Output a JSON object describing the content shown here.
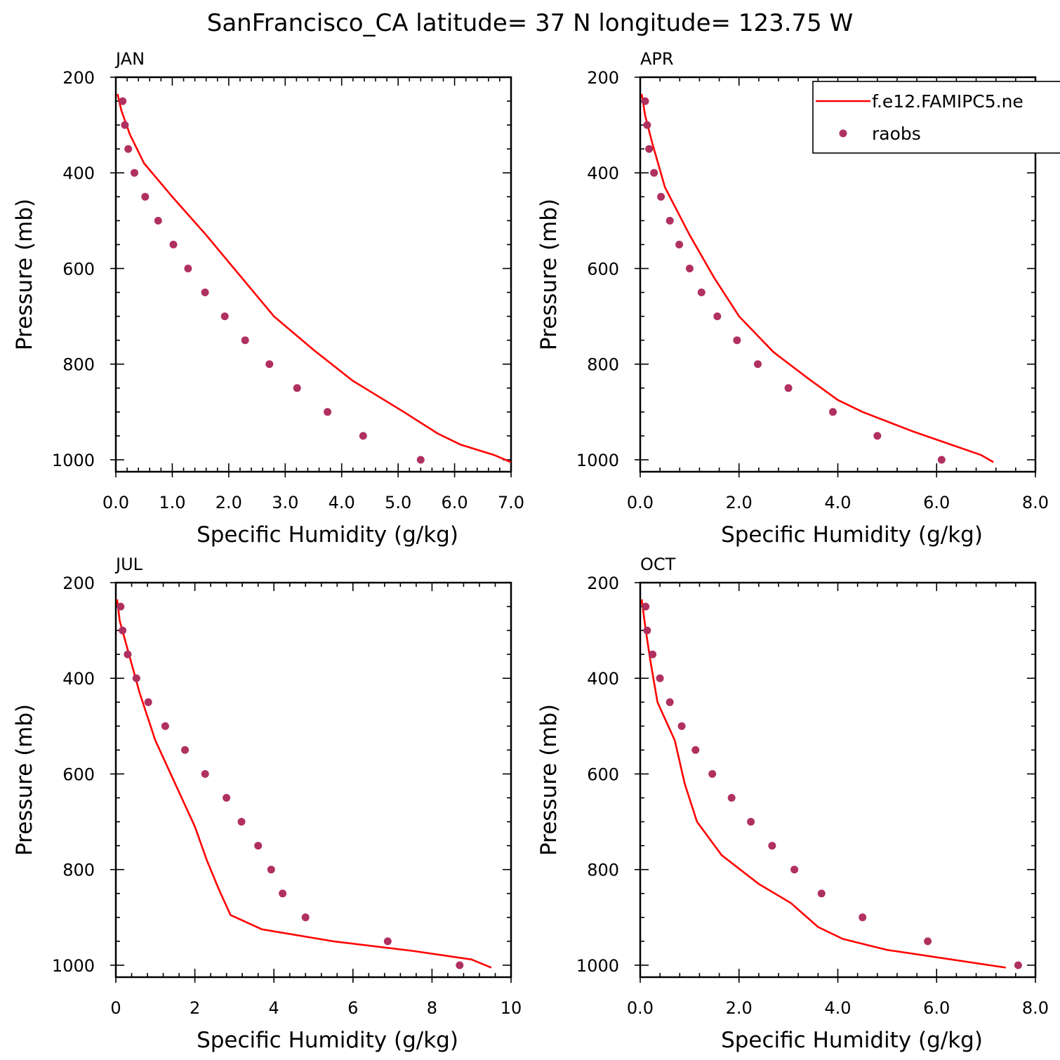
{
  "title": "SanFrancisco_CA  latitude= 37 N longitude= 123.75 W",
  "colors": {
    "model": "#ff0000",
    "obs": "#b03060",
    "axis": "#000000"
  },
  "legend": {
    "model_label": "f.e12.FAMIPC5.ne",
    "obs_label": "raobs"
  },
  "chart_data": [
    {
      "type": "line",
      "panel": "JAN",
      "xlabel": "Specific Humidity (g/kg)",
      "ylabel": "Pressure (mb)",
      "xlim": [
        0,
        7
      ],
      "ylim": [
        1025,
        200
      ],
      "xticks": [
        "0.0",
        "1.0",
        "2.0",
        "3.0",
        "4.0",
        "5.0",
        "6.0",
        "7.0"
      ],
      "yticks": [
        "200",
        "400",
        "600",
        "800",
        "1000"
      ],
      "series": [
        {
          "name": "f.e12.FAMIPC5.ne",
          "kind": "line",
          "x": [
            0.03,
            0.1,
            0.25,
            0.5,
            1.0,
            1.6,
            2.2,
            2.8,
            3.5,
            4.2,
            5.1,
            5.7,
            6.1,
            6.7,
            7.0
          ],
          "y": [
            235,
            270,
            320,
            380,
            450,
            530,
            615,
            700,
            770,
            835,
            900,
            945,
            968,
            990,
            1005
          ]
        },
        {
          "name": "raobs",
          "kind": "scatter",
          "x": [
            0.12,
            0.16,
            0.22,
            0.33,
            0.52,
            0.75,
            1.02,
            1.28,
            1.58,
            1.93,
            2.29,
            2.72,
            3.21,
            3.75,
            4.38,
            5.4
          ],
          "y": [
            250,
            300,
            350,
            400,
            450,
            500,
            550,
            600,
            650,
            700,
            750,
            800,
            850,
            900,
            950,
            1000
          ]
        }
      ]
    },
    {
      "type": "line",
      "panel": "APR",
      "xlabel": "Specific Humidity (g/kg)",
      "ylabel": "Pressure (mb)",
      "xlim": [
        0,
        8
      ],
      "ylim": [
        1025,
        200
      ],
      "xticks": [
        "0.0",
        "2.0",
        "4.0",
        "6.0",
        "8.0"
      ],
      "yticks": [
        "200",
        "400",
        "600",
        "800",
        "1000"
      ],
      "series": [
        {
          "name": "f.e12.FAMIPC5.ne",
          "kind": "line",
          "x": [
            0.03,
            0.1,
            0.25,
            0.5,
            1.0,
            1.5,
            2.0,
            2.7,
            3.4,
            4.0,
            4.5,
            5.5,
            6.9,
            7.15
          ],
          "y": [
            235,
            280,
            340,
            430,
            530,
            620,
            700,
            775,
            830,
            875,
            900,
            940,
            990,
            1005
          ]
        },
        {
          "name": "raobs",
          "kind": "scatter",
          "x": [
            0.1,
            0.14,
            0.18,
            0.28,
            0.42,
            0.6,
            0.79,
            1.0,
            1.24,
            1.56,
            1.96,
            2.38,
            3.0,
            3.9,
            4.8,
            6.1
          ],
          "y": [
            250,
            300,
            350,
            400,
            450,
            500,
            550,
            600,
            650,
            700,
            750,
            800,
            850,
            900,
            950,
            1000
          ]
        }
      ]
    },
    {
      "type": "line",
      "panel": "JUL",
      "xlabel": "Specific Humidity (g/kg)",
      "ylabel": "Pressure (mb)",
      "xlim": [
        0,
        10
      ],
      "ylim": [
        1025,
        200
      ],
      "xticks": [
        "0",
        "2",
        "4",
        "6",
        "8",
        "10"
      ],
      "yticks": [
        "200",
        "400",
        "600",
        "800",
        "1000"
      ],
      "series": [
        {
          "name": "f.e12.FAMIPC5.ne",
          "kind": "line",
          "x": [
            0.03,
            0.1,
            0.3,
            0.6,
            1.0,
            1.5,
            2.0,
            2.3,
            2.6,
            2.9,
            3.7,
            5.5,
            7.5,
            9.0,
            9.5
          ],
          "y": [
            235,
            280,
            340,
            430,
            530,
            620,
            710,
            780,
            840,
            895,
            925,
            950,
            970,
            988,
            1005
          ]
        },
        {
          "name": "raobs",
          "kind": "scatter",
          "x": [
            0.12,
            0.17,
            0.3,
            0.52,
            0.82,
            1.25,
            1.75,
            2.26,
            2.8,
            3.18,
            3.6,
            3.93,
            4.22,
            4.8,
            6.88,
            8.7
          ],
          "y": [
            250,
            300,
            350,
            400,
            450,
            500,
            550,
            600,
            650,
            700,
            750,
            800,
            850,
            900,
            950,
            1000
          ]
        }
      ]
    },
    {
      "type": "line",
      "panel": "OCT",
      "xlabel": "Specific Humidity (g/kg)",
      "ylabel": "Pressure (mb)",
      "xlim": [
        0,
        8
      ],
      "ylim": [
        1025,
        200
      ],
      "xticks": [
        "0.0",
        "2.0",
        "4.0",
        "6.0",
        "8.0"
      ],
      "yticks": [
        "200",
        "400",
        "600",
        "800",
        "1000"
      ],
      "series": [
        {
          "name": "f.e12.FAMIPC5.ne",
          "kind": "line",
          "x": [
            0.03,
            0.1,
            0.2,
            0.35,
            0.7,
            0.9,
            1.15,
            1.65,
            2.4,
            3.05,
            3.6,
            4.1,
            5.0,
            7.4
          ],
          "y": [
            235,
            290,
            360,
            450,
            530,
            620,
            700,
            770,
            830,
            870,
            920,
            945,
            968,
            1005
          ]
        },
        {
          "name": "raobs",
          "kind": "scatter",
          "x": [
            0.11,
            0.14,
            0.25,
            0.4,
            0.6,
            0.84,
            1.12,
            1.46,
            1.85,
            2.24,
            2.67,
            3.12,
            3.67,
            4.5,
            5.82,
            7.65
          ],
          "y": [
            250,
            300,
            350,
            400,
            450,
            500,
            550,
            600,
            650,
            700,
            750,
            800,
            850,
            900,
            950,
            1000
          ]
        }
      ]
    }
  ]
}
